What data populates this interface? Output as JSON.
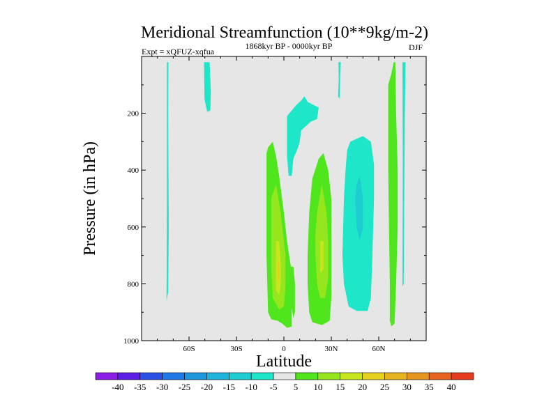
{
  "chart_data": {
    "type": "contour",
    "title": "Meridional Streamfunction (10**9kg/m-2)",
    "left_label": "Expt = xQFUZ-xqfua",
    "center_label": "1868kyr BP - 0000kyr BP",
    "right_label": "DJF",
    "xlabel": "Latitude",
    "ylabel": "Pressure (in hPa)",
    "xlim": [
      -90,
      90
    ],
    "ylim": [
      0,
      1000
    ],
    "y_inverted": true,
    "x_ticks": [
      {
        "value": -60,
        "label": "60S"
      },
      {
        "value": -30,
        "label": "30S"
      },
      {
        "value": 0,
        "label": "0"
      },
      {
        "value": 30,
        "label": "30N"
      },
      {
        "value": 60,
        "label": "60N"
      }
    ],
    "y_ticks": [
      {
        "value": 200,
        "label": "200"
      },
      {
        "value": 400,
        "label": "400"
      },
      {
        "value": 600,
        "label": "600"
      },
      {
        "value": 800,
        "label": "800"
      },
      {
        "value": 1000,
        "label": "1000"
      }
    ],
    "background_color": "#e6e6e6",
    "colorbar": {
      "levels": [
        -40,
        -35,
        -30,
        -25,
        -20,
        -15,
        -10,
        -5,
        5,
        10,
        15,
        20,
        25,
        30,
        35,
        40
      ],
      "labels": [
        "-40",
        "-35",
        "-30",
        "-25",
        "-20",
        "-15",
        "-10",
        "-5",
        "5",
        "10",
        "15",
        "20",
        "25",
        "30",
        "35",
        "40"
      ],
      "colors": [
        "#8a1ee6",
        "#5a1ee6",
        "#2a50e6",
        "#1e78e6",
        "#1e96dc",
        "#1eb4dc",
        "#1ecdd2",
        "#1ee6c8",
        "#e6e6e6",
        "#50e61e",
        "#96e61e",
        "#c8e61e",
        "#e6d21e",
        "#e6b41e",
        "#e6961e",
        "#e6641e",
        "#e63c1e"
      ]
    },
    "regions": [
      {
        "color": "#1ee6c8",
        "points": [
          [
            -74,
            20
          ],
          [
            -73,
            20
          ],
          [
            -73.2,
            200
          ],
          [
            -72.8,
            600
          ],
          [
            -73.2,
            830
          ],
          [
            -74.2,
            860
          ],
          [
            -74,
            500
          ]
        ]
      },
      {
        "color": "#1ee6c8",
        "points": [
          [
            -50.5,
            20
          ],
          [
            -47,
            20
          ],
          [
            -46.2,
            120
          ],
          [
            -46.5,
            190
          ],
          [
            -48.5,
            195
          ],
          [
            -50.2,
            150
          ]
        ]
      },
      {
        "color": "#1ee6c8",
        "points": [
          [
            2,
            210
          ],
          [
            8,
            170
          ],
          [
            11,
            155
          ],
          [
            13,
            140
          ],
          [
            15,
            160
          ],
          [
            22,
            180
          ],
          [
            21,
            220
          ],
          [
            17,
            230
          ],
          [
            11,
            260
          ],
          [
            10,
            300
          ],
          [
            9,
            320
          ],
          [
            6,
            360
          ],
          [
            5,
            420
          ],
          [
            3,
            420
          ],
          [
            2,
            350
          ]
        ]
      },
      {
        "color": "#1ee6c8",
        "points": [
          [
            34.5,
            20
          ],
          [
            36,
            20
          ],
          [
            35.6,
            80
          ],
          [
            35.4,
            150
          ],
          [
            34.3,
            140
          ],
          [
            34.7,
            80
          ]
        ]
      },
      {
        "color": "#1ee6c8",
        "points": [
          [
            75,
            20
          ],
          [
            77,
            20
          ],
          [
            76.5,
            200
          ],
          [
            76,
            600
          ],
          [
            75.8,
            800
          ],
          [
            75,
            810
          ],
          [
            75.2,
            400
          ]
        ]
      },
      {
        "color": "#1ee6c8",
        "points": [
          [
            40,
            330
          ],
          [
            42,
            300
          ],
          [
            50,
            280
          ],
          [
            55,
            300
          ],
          [
            57,
            380
          ],
          [
            57,
            500
          ],
          [
            56,
            700
          ],
          [
            55,
            850
          ],
          [
            53,
            895
          ],
          [
            46,
            895
          ],
          [
            41,
            880
          ],
          [
            38,
            800
          ],
          [
            37,
            700
          ],
          [
            38,
            500
          ],
          [
            39,
            400
          ]
        ]
      },
      {
        "color": "#1ecdd2",
        "points": [
          [
            46,
            450
          ],
          [
            48,
            420
          ],
          [
            50,
            500
          ],
          [
            50,
            600
          ],
          [
            48,
            650
          ],
          [
            46,
            600
          ],
          [
            45,
            500
          ]
        ]
      },
      {
        "color": "#50e61e",
        "points": [
          [
            -11,
            340
          ],
          [
            -10,
            320
          ],
          [
            -7,
            300
          ],
          [
            -5,
            350
          ],
          [
            -3,
            420
          ],
          [
            0,
            550
          ],
          [
            2,
            650
          ],
          [
            5,
            760
          ],
          [
            5,
            950
          ],
          [
            2,
            955
          ],
          [
            -1,
            940
          ],
          [
            -4,
            930
          ],
          [
            -8,
            925
          ],
          [
            -10,
            900
          ],
          [
            -11,
            700
          ],
          [
            -11,
            500
          ]
        ]
      },
      {
        "color": "#50e61e",
        "points": [
          [
            3,
            760
          ],
          [
            4,
            740
          ],
          [
            6,
            740
          ],
          [
            7,
            800
          ],
          [
            7,
            900
          ],
          [
            6,
            920
          ],
          [
            4,
            850
          ]
        ]
      },
      {
        "color": "#50e61e",
        "points": [
          [
            16,
            550
          ],
          [
            18,
            430
          ],
          [
            22,
            360
          ],
          [
            25,
            340
          ],
          [
            28,
            400
          ],
          [
            30,
            500
          ],
          [
            30,
            700
          ],
          [
            30,
            850
          ],
          [
            29,
            930
          ],
          [
            24,
            945
          ],
          [
            18,
            935
          ],
          [
            16,
            900
          ],
          [
            15,
            800
          ],
          [
            15,
            700
          ]
        ]
      },
      {
        "color": "#50e61e",
        "points": [
          [
            66,
            100
          ],
          [
            68,
            60
          ],
          [
            69.5,
            20
          ],
          [
            70.5,
            20
          ],
          [
            71,
            200
          ],
          [
            72,
            400
          ],
          [
            72,
            600
          ],
          [
            71,
            800
          ],
          [
            70,
            940
          ],
          [
            68,
            950
          ],
          [
            67,
            930
          ],
          [
            67,
            800
          ],
          [
            66.5,
            600
          ],
          [
            66,
            400
          ],
          [
            66,
            200
          ]
        ]
      },
      {
        "color": "#96e61e",
        "points": [
          [
            -8,
            500
          ],
          [
            -5,
            450
          ],
          [
            -2,
            550
          ],
          [
            1,
            700
          ],
          [
            1,
            800
          ],
          [
            0,
            880
          ],
          [
            -3,
            890
          ],
          [
            -7,
            850
          ],
          [
            -8,
            750
          ],
          [
            -8,
            600
          ]
        ]
      },
      {
        "color": "#96e61e",
        "points": [
          [
            21,
            550
          ],
          [
            24,
            450
          ],
          [
            27,
            550
          ],
          [
            28,
            650
          ],
          [
            28,
            780
          ],
          [
            26,
            850
          ],
          [
            23,
            850
          ],
          [
            21,
            800
          ],
          [
            20,
            700
          ],
          [
            20,
            620
          ]
        ]
      },
      {
        "color": "#c8e61e",
        "points": [
          [
            -5,
            650
          ],
          [
            -3,
            650
          ],
          [
            -2,
            730
          ],
          [
            -2,
            800
          ],
          [
            -3,
            840
          ],
          [
            -5,
            820
          ],
          [
            -5,
            740
          ]
        ]
      },
      {
        "color": "#c8e61e",
        "points": [
          [
            23,
            650
          ],
          [
            25,
            650
          ],
          [
            25,
            750
          ],
          [
            23,
            760
          ],
          [
            23,
            700
          ]
        ]
      },
      {
        "color": "#e6d21e",
        "points": [
          [
            -4,
            720
          ],
          [
            -3,
            720
          ],
          [
            -3,
            780
          ],
          [
            -4,
            790
          ]
        ]
      }
    ]
  }
}
